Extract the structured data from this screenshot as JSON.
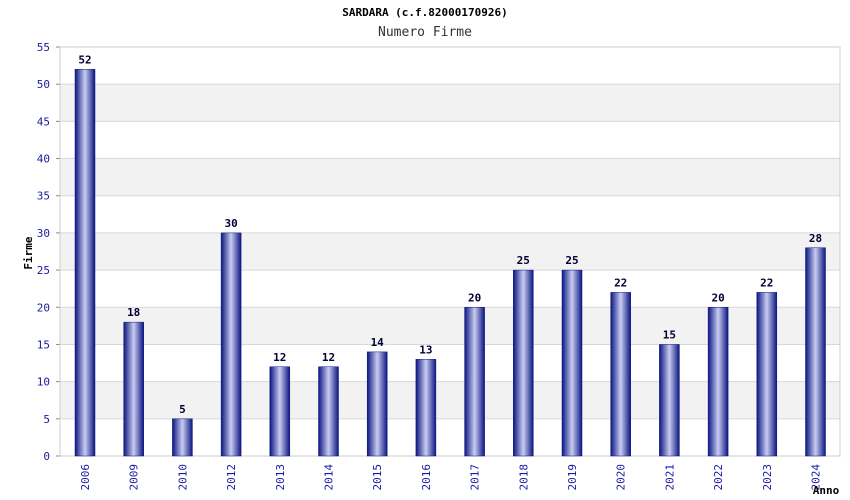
{
  "chart_data": {
    "type": "bar",
    "title": "SARDARA (c.f.82000170926)",
    "subtitle": "Numero Firme",
    "xlabel": "Anno",
    "ylabel": "Firme",
    "categories": [
      "2006",
      "2009",
      "2010",
      "2012",
      "2013",
      "2014",
      "2015",
      "2016",
      "2017",
      "2018",
      "2019",
      "2020",
      "2021",
      "2022",
      "2023",
      "2024"
    ],
    "values": [
      52,
      18,
      5,
      30,
      12,
      12,
      14,
      13,
      20,
      25,
      25,
      22,
      15,
      20,
      22,
      28
    ],
    "ylim": [
      0,
      55
    ],
    "yticks": [
      0,
      5,
      10,
      15,
      20,
      25,
      30,
      35,
      40,
      45,
      50,
      55
    ],
    "grid": true,
    "show_value_labels": true,
    "colors": {
      "bar_dark": "#0a1580",
      "bar_light": "#c9ccf2",
      "band": "#f2f2f2",
      "gridline": "#d8d8d8",
      "tick_label": "#1a1aa0",
      "value_label": "#000033"
    }
  }
}
